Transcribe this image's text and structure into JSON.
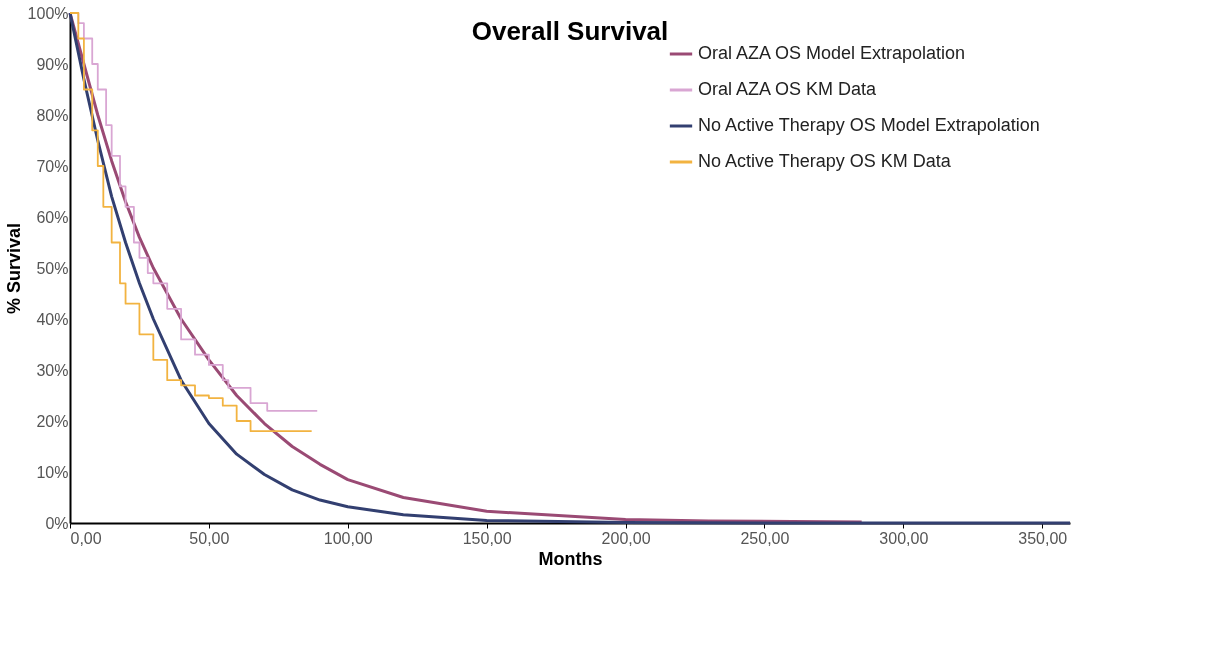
{
  "chart_data": {
    "type": "line",
    "title": "Overall Survival",
    "xlabel": "Months",
    "ylabel": "% Survival",
    "xlim": [
      0,
      360
    ],
    "ylim": [
      0,
      100
    ],
    "xticks": [
      {
        "value": 0,
        "label": "0,00"
      },
      {
        "value": 50,
        "label": "50,00"
      },
      {
        "value": 100,
        "label": "100,00"
      },
      {
        "value": 150,
        "label": "150,00"
      },
      {
        "value": 200,
        "label": "200,00"
      },
      {
        "value": 250,
        "label": "250,00"
      },
      {
        "value": 300,
        "label": "300,00"
      },
      {
        "value": 350,
        "label": "350,00"
      }
    ],
    "yticks": [
      {
        "value": 0,
        "label": "0%"
      },
      {
        "value": 10,
        "label": "10%"
      },
      {
        "value": 20,
        "label": "20%"
      },
      {
        "value": 30,
        "label": "30%"
      },
      {
        "value": 40,
        "label": "40%"
      },
      {
        "value": 50,
        "label": "50%"
      },
      {
        "value": 60,
        "label": "60%"
      },
      {
        "value": 70,
        "label": "70%"
      },
      {
        "value": 80,
        "label": "80%"
      },
      {
        "value": 90,
        "label": "90%"
      },
      {
        "value": 100,
        "label": "100%"
      }
    ],
    "grid": false,
    "legend": "top right",
    "marker": "none",
    "series": [
      {
        "name": "Oral AZA OS Model Extrapolation",
        "color": "#9a4a74",
        "x": [
          0,
          5,
          10,
          15,
          20,
          25,
          30,
          40,
          50,
          60,
          70,
          80,
          90,
          100,
          120,
          150,
          200,
          230,
          260,
          285
        ],
        "values": [
          100,
          90,
          80,
          71,
          63,
          56,
          50,
          40,
          32,
          25,
          19.5,
          15,
          11.5,
          8.5,
          5,
          2.3,
          0.7,
          0.4,
          0.3,
          0.2
        ]
      },
      {
        "name": "Oral AZA OS KM Data",
        "color": "#d9a6d3",
        "type": "step",
        "x": [
          0,
          3,
          5,
          8,
          10,
          13,
          15,
          18,
          20,
          23,
          25,
          28,
          30,
          35,
          40,
          45,
          50,
          55,
          57,
          65,
          71,
          89
        ],
        "values": [
          100,
          98,
          95,
          90,
          85,
          78,
          72,
          66,
          62,
          55,
          52,
          49,
          47,
          42,
          36,
          33,
          31,
          28,
          26.5,
          23.5,
          22,
          22
        ]
      },
      {
        "name": "No Active Therapy OS Model Extrapolation",
        "color": "#323f70",
        "x": [
          0,
          5,
          10,
          15,
          20,
          25,
          30,
          40,
          50,
          60,
          70,
          80,
          90,
          100,
          120,
          150,
          200,
          250,
          300,
          360
        ],
        "values": [
          100,
          87,
          75,
          64,
          55,
          47,
          40,
          28,
          19.5,
          13.5,
          9.5,
          6.5,
          4.5,
          3.2,
          1.6,
          0.5,
          0.1,
          0,
          0,
          0
        ]
      },
      {
        "name": "No Active Therapy OS KM Data",
        "color": "#f2b340",
        "type": "step",
        "x": [
          0,
          3,
          5,
          8,
          10,
          12,
          15,
          18,
          20,
          25,
          30,
          35,
          40,
          45,
          50,
          55,
          60,
          65,
          87
        ],
        "values": [
          100,
          95,
          85,
          77,
          70,
          62,
          55,
          47,
          43,
          37,
          32,
          28,
          27,
          25,
          24.5,
          23,
          20,
          18,
          18
        ]
      }
    ]
  }
}
